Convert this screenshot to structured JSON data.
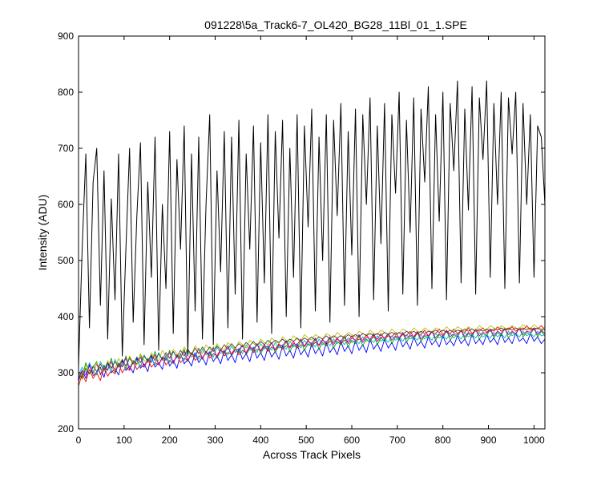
{
  "chart_data": {
    "type": "line",
    "title": "091228\\5a_Track6-7_OL420_BG28_11Bl_01_1.SPE",
    "xlabel": "Across Track Pixels",
    "ylabel": "Intensity (ADU)",
    "xlim": [
      0,
      1024
    ],
    "ylim": [
      200,
      900
    ],
    "x_ticks": [
      0,
      100,
      200,
      300,
      400,
      500,
      600,
      700,
      800,
      900,
      1000
    ],
    "y_ticks": [
      200,
      300,
      400,
      500,
      600,
      700,
      800,
      900
    ],
    "x_tick_labels": [
      "0",
      "100",
      "200",
      "300",
      "400",
      "500",
      "600",
      "700",
      "800",
      "900",
      "1000"
    ],
    "y_tick_labels": [
      "200",
      "300",
      "400",
      "500",
      "600",
      "700",
      "800",
      "900"
    ],
    "grid": false,
    "legend": "none",
    "x_step": 8,
    "series": [
      {
        "color": "#000000",
        "values": [
          310,
          520,
          690,
          380,
          640,
          700,
          420,
          660,
          360,
          610,
          430,
          690,
          330,
          520,
          700,
          390,
          580,
          710,
          350,
          640,
          470,
          720,
          340,
          600,
          450,
          730,
          370,
          680,
          520,
          740,
          330,
          690,
          410,
          720,
          360,
          600,
          760,
          350,
          660,
          480,
          730,
          380,
          720,
          440,
          750,
          360,
          690,
          520,
          740,
          390,
          710,
          460,
          760,
          370,
          730,
          540,
          750,
          400,
          700,
          470,
          760,
          380,
          740,
          560,
          770,
          410,
          720,
          500,
          760,
          390,
          750,
          580,
          780,
          420,
          730,
          510,
          770,
          400,
          760,
          600,
          790,
          430,
          740,
          530,
          780,
          410,
          760,
          620,
          800,
          440,
          750,
          550,
          790,
          420,
          770,
          640,
          810,
          450,
          760,
          570,
          800,
          430,
          780,
          660,
          820,
          460,
          770,
          590,
          810,
          440,
          790,
          680,
          820,
          470,
          780,
          600,
          800,
          450,
          790,
          690,
          800,
          460,
          780,
          600,
          760,
          470,
          740,
          720,
          600
        ]
      },
      {
        "color": "#0000ff",
        "values": [
          285,
          305,
          290,
          315,
          295,
          300,
          310,
          292,
          318,
          300,
          308,
          296,
          322,
          304,
          312,
          300,
          326,
          308,
          316,
          302,
          330,
          310,
          318,
          306,
          332,
          312,
          322,
          308,
          334,
          316,
          324,
          312,
          336,
          318,
          328,
          314,
          338,
          320,
          330,
          316,
          340,
          322,
          332,
          318,
          342,
          324,
          334,
          320,
          344,
          326,
          336,
          322,
          346,
          328,
          338,
          324,
          348,
          330,
          340,
          326,
          350,
          332,
          342,
          328,
          352,
          334,
          344,
          330,
          354,
          336,
          346,
          332,
          356,
          338,
          348,
          334,
          358,
          340,
          350,
          336,
          360,
          342,
          352,
          338,
          360,
          344,
          354,
          340,
          362,
          346,
          356,
          342,
          364,
          348,
          356,
          344,
          364,
          350,
          358,
          346,
          366,
          350,
          358,
          348,
          366,
          352,
          360,
          348,
          368,
          352,
          360,
          350,
          368,
          354,
          362,
          350,
          370,
          354,
          362,
          352,
          370,
          356,
          362,
          352,
          370,
          356,
          364,
          352,
          360
        ]
      },
      {
        "color": "#00a000",
        "values": [
          300,
          292,
          318,
          298,
          310,
          320,
          296,
          314,
          304,
          326,
          300,
          318,
          310,
          330,
          306,
          322,
          314,
          334,
          310,
          326,
          318,
          338,
          314,
          328,
          322,
          340,
          316,
          332,
          326,
          342,
          320,
          336,
          328,
          344,
          324,
          338,
          330,
          346,
          326,
          340,
          334,
          348,
          330,
          342,
          336,
          350,
          332,
          344,
          338,
          352,
          334,
          346,
          340,
          354,
          336,
          348,
          342,
          356,
          338,
          350,
          344,
          358,
          340,
          352,
          346,
          360,
          342,
          354,
          348,
          362,
          344,
          356,
          350,
          364,
          346,
          358,
          352,
          366,
          348,
          360,
          354,
          368,
          350,
          362,
          356,
          370,
          352,
          364,
          358,
          372,
          354,
          366,
          360,
          372,
          356,
          366,
          362,
          374,
          358,
          368,
          362,
          376,
          358,
          368,
          364,
          376,
          360,
          370,
          364,
          378,
          360,
          370,
          366,
          378,
          362,
          372,
          366,
          380,
          362,
          372,
          368,
          380,
          364,
          372,
          368,
          380,
          364,
          374,
          366
        ]
      },
      {
        "color": "#ff0000",
        "values": [
          276,
          298,
          284,
          306,
          290,
          300,
          286,
          312,
          294,
          304,
          298,
          316,
          300,
          310,
          304,
          320,
          306,
          314,
          310,
          324,
          310,
          318,
          314,
          328,
          314,
          322,
          318,
          332,
          318,
          326,
          322,
          336,
          322,
          330,
          326,
          338,
          326,
          334,
          330,
          342,
          330,
          336,
          334,
          344,
          332,
          340,
          336,
          348,
          336,
          342,
          340,
          350,
          338,
          346,
          342,
          352,
          342,
          348,
          346,
          356,
          344,
          350,
          348,
          358,
          348,
          354,
          350,
          360,
          350,
          356,
          354,
          362,
          352,
          358,
          356,
          366,
          356,
          360,
          358,
          368,
          358,
          364,
          360,
          370,
          360,
          366,
          364,
          372,
          362,
          368,
          366,
          374,
          364,
          370,
          368,
          376,
          366,
          372,
          370,
          378,
          368,
          374,
          370,
          378,
          370,
          374,
          372,
          380,
          370,
          376,
          374,
          380,
          372,
          378,
          374,
          382,
          374,
          378,
          376,
          382,
          374,
          380,
          376,
          384,
          376,
          380,
          378,
          384,
          376
        ]
      },
      {
        "color": "#00bfbf",
        "values": [
          296,
          310,
          300,
          318,
          304,
          296,
          320,
          308,
          314,
          302,
          324,
          312,
          318,
          306,
          328,
          316,
          322,
          310,
          332,
          320,
          326,
          314,
          336,
          322,
          330,
          318,
          338,
          326,
          332,
          322,
          340,
          328,
          336,
          324,
          342,
          332,
          338,
          328,
          346,
          334,
          340,
          332,
          348,
          336,
          344,
          334,
          350,
          340,
          346,
          336,
          352,
          342,
          348,
          340,
          354,
          344,
          350,
          342,
          356,
          346,
          352,
          344,
          358,
          348,
          354,
          346,
          360,
          350,
          356,
          348,
          360,
          352,
          358,
          350,
          362,
          354,
          358,
          352,
          364,
          356,
          360,
          354,
          366,
          356,
          362,
          354,
          366,
          358,
          364,
          356,
          368,
          360,
          364,
          358,
          368,
          360,
          366,
          358,
          370,
          362,
          366,
          360,
          370,
          362,
          368,
          360,
          372,
          364,
          368,
          362,
          372,
          364,
          368,
          362,
          372,
          364,
          370,
          362,
          374,
          366,
          370,
          364,
          374,
          366,
          370,
          364,
          374,
          366,
          368
        ]
      },
      {
        "color": "#bf00bf",
        "values": [
          290,
          304,
          296,
          312,
          300,
          316,
          298,
          308,
          306,
          320,
          302,
          314,
          312,
          326,
          306,
          318,
          316,
          328,
          310,
          322,
          320,
          332,
          314,
          326,
          324,
          336,
          318,
          330,
          328,
          338,
          322,
          334,
          330,
          342,
          326,
          336,
          334,
          344,
          328,
          340,
          336,
          348,
          332,
          342,
          340,
          350,
          334,
          346,
          342,
          352,
          338,
          348,
          346,
          354,
          340,
          350,
          348,
          358,
          344,
          352,
          350,
          360,
          346,
          356,
          352,
          362,
          348,
          358,
          354,
          364,
          350,
          360,
          356,
          366,
          352,
          362,
          358,
          368,
          354,
          364,
          360,
          370,
          356,
          364,
          362,
          370,
          358,
          366,
          362,
          372,
          360,
          368,
          364,
          374,
          360,
          368,
          366,
          374,
          362,
          370,
          366,
          376,
          364,
          370,
          368,
          376,
          364,
          372,
          368,
          378,
          366,
          372,
          370,
          378,
          366,
          374,
          370,
          378,
          368,
          374,
          370,
          380,
          368,
          374,
          372,
          380,
          368,
          376,
          370
        ]
      },
      {
        "color": "#bfbf00",
        "values": [
          302,
          288,
          314,
          300,
          296,
          318,
          306,
          302,
          322,
          310,
          306,
          326,
          314,
          310,
          330,
          318,
          314,
          334,
          322,
          318,
          336,
          326,
          322,
          340,
          330,
          326,
          342,
          334,
          328,
          346,
          336,
          332,
          348,
          340,
          334,
          350,
          342,
          338,
          352,
          344,
          340,
          354,
          348,
          342,
          356,
          350,
          344,
          358,
          352,
          348,
          360,
          354,
          350,
          362,
          356,
          352,
          364,
          358,
          354,
          366,
          360,
          356,
          368,
          362,
          358,
          368,
          364,
          360,
          370,
          366,
          362,
          372,
          366,
          364,
          372,
          368,
          364,
          374,
          370,
          366,
          376,
          370,
          368,
          376,
          372,
          368,
          378,
          372,
          370,
          378,
          374,
          370,
          380,
          374,
          372,
          380,
          376,
          372,
          380,
          376,
          374,
          382,
          376,
          374,
          382,
          378,
          374,
          382,
          378,
          376,
          384,
          378,
          376,
          384,
          380,
          376,
          384,
          380,
          378,
          384,
          380,
          378,
          386,
          380,
          378,
          386,
          380,
          378,
          382
        ]
      },
      {
        "color": "#404040",
        "values": [
          298,
          290,
          308,
          298,
          312,
          302,
          316,
          304,
          318,
          308,
          320,
          310,
          324,
          312,
          326,
          316,
          328,
          318,
          330,
          320,
          332,
          322,
          334,
          324,
          336,
          326,
          338,
          328,
          340,
          330,
          342,
          332,
          344,
          334,
          346,
          336,
          346,
          338,
          348,
          340,
          350,
          342,
          352,
          344,
          352,
          346,
          354,
          348,
          356,
          348,
          356,
          350,
          358,
          352,
          358,
          354,
          360,
          354,
          360,
          356,
          362,
          356,
          362,
          358,
          364,
          358,
          364,
          360,
          366,
          360,
          366,
          362,
          366,
          362,
          368,
          364,
          368,
          364,
          370,
          366,
          370,
          366,
          370,
          366,
          372,
          368,
          372,
          368,
          372,
          368,
          374,
          370,
          374,
          370,
          374,
          370,
          374,
          372,
          376,
          372,
          376,
          372,
          376,
          372,
          376,
          374,
          378,
          374,
          378,
          374,
          378,
          374,
          378,
          374,
          378,
          376,
          380,
          376,
          380,
          376,
          380,
          376,
          380,
          376,
          380,
          376,
          380,
          376,
          378
        ]
      }
    ]
  }
}
